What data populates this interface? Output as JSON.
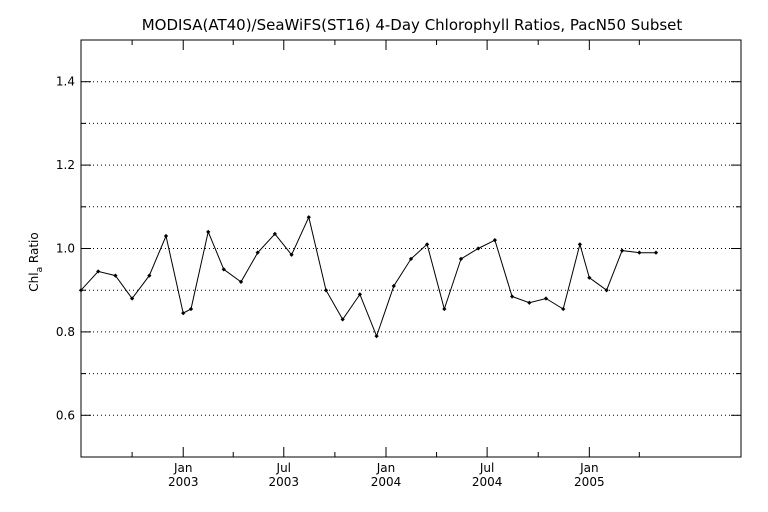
{
  "chart_data": {
    "type": "line",
    "title": "MODISA(AT40)/SeaWiFS(ST16) 4-Day Chlorophyll Ratios, PacN50 Subset",
    "ylabel": "Chl_a Ratio",
    "ylabel_main": "Chl",
    "ylabel_sub": "a",
    "ylabel_rest": " Ratio",
    "xlabel": "",
    "ylim": [
      0.5,
      1.5
    ],
    "yticks": [
      0.6,
      0.8,
      1.0,
      1.2,
      1.4
    ],
    "ytick_labels": [
      "0.6",
      "0.8",
      "1.0",
      "1.2",
      "1.4"
    ],
    "y_minor_step": 0.1,
    "grid": true,
    "xlim": [
      "2002-07-01",
      "2005-10-01"
    ],
    "x_minor_ticks": [
      "2002-10-01",
      "2003-04-01",
      "2003-10-01",
      "2004-04-01",
      "2004-10-01",
      "2005-04-01"
    ],
    "x_major_ticks": [
      {
        "date": "2003-01-01",
        "month": "Jan",
        "year": "2003"
      },
      {
        "date": "2003-07-01",
        "month": "Jul",
        "year": "2003"
      },
      {
        "date": "2004-01-01",
        "month": "Jan",
        "year": "2004"
      },
      {
        "date": "2004-07-01",
        "month": "Jul",
        "year": "2004"
      },
      {
        "date": "2005-01-01",
        "month": "Jan",
        "year": "2005"
      }
    ],
    "series": [
      {
        "x": [
          "2002-07-01",
          "2002-08-01",
          "2002-09-01",
          "2002-10-01",
          "2002-11-01",
          "2002-12-01",
          "2003-01-01",
          "2003-01-15",
          "2003-02-15",
          "2003-03-15",
          "2003-04-15",
          "2003-05-15",
          "2003-06-15",
          "2003-07-15",
          "2003-08-15",
          "2003-09-15",
          "2003-10-15",
          "2003-11-15",
          "2003-12-15",
          "2004-01-15",
          "2004-02-15",
          "2004-03-15",
          "2004-04-15",
          "2004-05-15",
          "2004-06-15",
          "2004-07-15",
          "2004-08-15",
          "2004-09-15",
          "2004-10-15",
          "2004-11-15",
          "2004-12-15",
          "2005-01-01",
          "2005-02-01",
          "2005-03-01",
          "2005-04-01",
          "2005-05-01"
        ],
        "values": [
          0.9,
          0.945,
          0.935,
          0.88,
          0.935,
          1.03,
          0.845,
          0.855,
          1.04,
          0.95,
          0.92,
          0.99,
          1.035,
          0.985,
          1.075,
          0.9,
          0.83,
          0.89,
          0.79,
          0.91,
          0.975,
          1.01,
          0.855,
          0.975,
          1.0,
          1.02,
          0.885,
          0.87,
          0.88,
          0.855,
          1.01,
          0.93,
          0.9,
          0.995,
          0.99,
          0.99
        ]
      }
    ]
  }
}
